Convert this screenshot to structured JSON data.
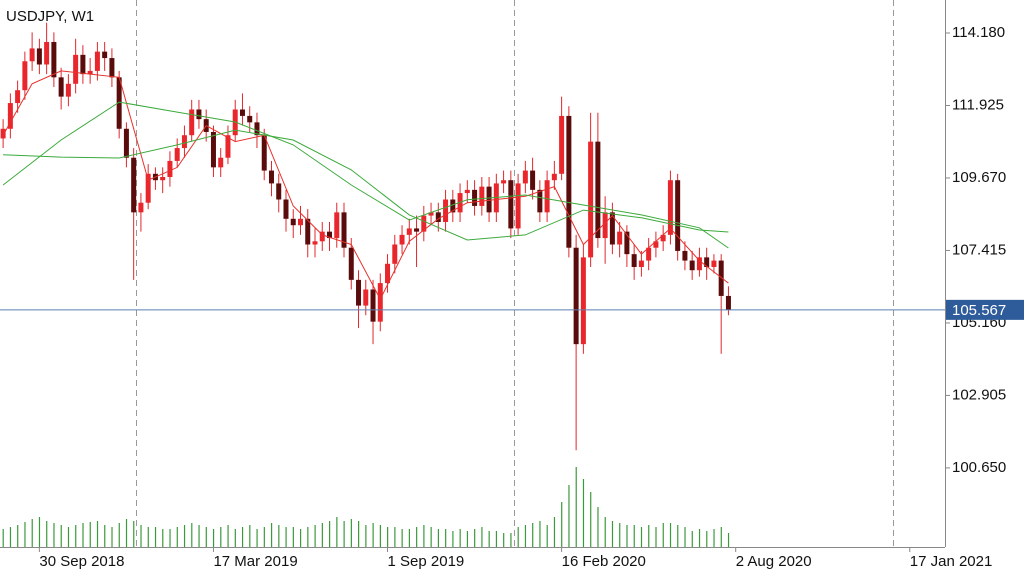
{
  "chart_data": {
    "type": "candlestick",
    "title": "USDJPY, W1",
    "x": [
      "2018-08-26",
      "2018-09-02",
      "2018-09-09",
      "2018-09-16",
      "2018-09-23",
      "2018-09-30",
      "2018-10-07",
      "2018-10-14",
      "2018-10-21",
      "2018-10-28",
      "2018-11-04",
      "2018-11-11",
      "2018-11-18",
      "2018-11-25",
      "2018-12-02",
      "2018-12-09",
      "2018-12-16",
      "2018-12-23",
      "2018-12-30",
      "2019-01-06",
      "2019-01-13",
      "2019-01-20",
      "2019-01-27",
      "2019-02-03",
      "2019-02-10",
      "2019-02-17",
      "2019-02-24",
      "2019-03-03",
      "2019-03-10",
      "2019-03-17",
      "2019-03-24",
      "2019-03-31",
      "2019-04-07",
      "2019-04-14",
      "2019-04-21",
      "2019-04-28",
      "2019-05-05",
      "2019-05-12",
      "2019-05-19",
      "2019-05-26",
      "2019-06-02",
      "2019-06-09",
      "2019-06-16",
      "2019-06-23",
      "2019-06-30",
      "2019-07-07",
      "2019-07-14",
      "2019-07-21",
      "2019-07-28",
      "2019-08-04",
      "2019-08-11",
      "2019-08-18",
      "2019-08-25",
      "2019-09-01",
      "2019-09-08",
      "2019-09-15",
      "2019-09-22",
      "2019-09-29",
      "2019-10-06",
      "2019-10-13",
      "2019-10-20",
      "2019-10-27",
      "2019-11-03",
      "2019-11-10",
      "2019-11-17",
      "2019-11-24",
      "2019-12-01",
      "2019-12-08",
      "2019-12-15",
      "2019-12-22",
      "2019-12-29",
      "2020-01-05",
      "2020-01-12",
      "2020-01-19",
      "2020-01-26",
      "2020-02-02",
      "2020-02-09",
      "2020-02-16",
      "2020-02-23",
      "2020-03-01",
      "2020-03-08",
      "2020-03-15",
      "2020-03-22",
      "2020-03-29",
      "2020-04-05",
      "2020-04-12",
      "2020-04-19",
      "2020-04-26",
      "2020-05-03",
      "2020-05-10",
      "2020-05-17",
      "2020-05-24",
      "2020-05-31",
      "2020-06-07",
      "2020-06-14",
      "2020-06-21",
      "2020-06-28",
      "2020-07-05",
      "2020-07-12",
      "2020-07-19",
      "2020-07-26"
    ],
    "open": [
      110.9,
      111.2,
      112.0,
      112.4,
      113.3,
      113.7,
      113.2,
      113.9,
      112.8,
      112.2,
      112.6,
      113.5,
      112.9,
      113.0,
      113.6,
      113.4,
      112.8,
      111.2,
      110.3,
      108.6,
      108.9,
      109.8,
      109.6,
      109.7,
      110.2,
      110.6,
      111.0,
      111.8,
      111.5,
      111.1,
      110.0,
      110.3,
      111.0,
      111.8,
      111.6,
      111.4,
      111.0,
      109.9,
      109.5,
      109.0,
      108.4,
      108.2,
      108.4,
      107.6,
      107.7,
      108.0,
      107.8,
      108.6,
      107.5,
      106.5,
      105.7,
      106.2,
      105.2,
      106.4,
      107.0,
      107.6,
      107.9,
      108.1,
      108.0,
      108.5,
      108.6,
      108.3,
      109.0,
      108.6,
      109.2,
      109.3,
      108.8,
      109.4,
      108.6,
      109.5,
      109.6,
      108.1,
      109.5,
      109.9,
      109.3,
      108.6,
      109.6,
      109.8,
      111.6,
      107.5,
      104.5,
      107.2,
      110.8,
      107.8,
      108.6,
      107.6,
      108.0,
      107.3,
      106.9,
      107.1,
      107.5,
      107.7,
      107.9,
      109.6,
      107.4,
      107.1,
      106.8,
      107.2,
      106.9,
      107.1,
      106.0
    ],
    "high": [
      111.5,
      112.3,
      112.7,
      113.6,
      114.2,
      114.0,
      114.5,
      114.2,
      113.1,
      112.9,
      114.0,
      113.8,
      113.4,
      113.9,
      113.9,
      113.7,
      113.0,
      111.4,
      110.6,
      109.2,
      110.1,
      110.0,
      110.0,
      110.5,
      110.9,
      111.3,
      112.1,
      112.1,
      111.8,
      111.3,
      110.6,
      111.3,
      112.1,
      112.3,
      111.9,
      111.7,
      111.2,
      110.2,
      109.8,
      109.3,
      108.7,
      108.8,
      108.7,
      108.1,
      108.3,
      108.3,
      108.9,
      108.9,
      107.8,
      106.8,
      106.5,
      106.5,
      106.7,
      107.3,
      107.9,
      108.2,
      108.4,
      108.5,
      108.8,
      108.9,
      108.9,
      109.3,
      109.3,
      109.5,
      109.6,
      109.6,
      109.7,
      109.7,
      109.8,
      109.9,
      109.9,
      109.8,
      110.2,
      110.3,
      109.6,
      109.9,
      110.2,
      112.2,
      111.9,
      107.9,
      107.6,
      111.7,
      111.7,
      109.1,
      108.9,
      108.3,
      108.2,
      107.6,
      107.4,
      107.8,
      108.0,
      108.2,
      109.9,
      109.8,
      107.7,
      107.4,
      107.5,
      107.5,
      107.3,
      107.3,
      106.3
    ],
    "low": [
      110.6,
      110.9,
      111.7,
      112.1,
      113.0,
      112.9,
      112.9,
      112.5,
      111.8,
      111.9,
      112.3,
      112.6,
      112.6,
      112.7,
      113.0,
      112.5,
      110.9,
      110.0,
      106.5,
      108.0,
      108.7,
      109.3,
      109.2,
      109.4,
      110.0,
      110.3,
      110.8,
      111.2,
      110.8,
      109.7,
      109.7,
      110.1,
      110.8,
      111.3,
      111.1,
      110.6,
      109.6,
      109.1,
      108.6,
      108.0,
      107.8,
      107.9,
      107.2,
      107.2,
      107.4,
      107.4,
      107.5,
      107.2,
      106.2,
      105.0,
      105.4,
      104.5,
      104.9,
      106.1,
      106.7,
      107.3,
      107.6,
      106.9,
      107.7,
      108.2,
      108.0,
      108.0,
      108.3,
      108.3,
      108.9,
      108.5,
      108.5,
      108.3,
      108.3,
      109.2,
      107.8,
      107.9,
      109.2,
      109.0,
      108.3,
      108.3,
      109.3,
      109.6,
      107.2,
      101.2,
      104.2,
      106.9,
      107.5,
      107.0,
      107.3,
      107.2,
      106.9,
      106.5,
      106.6,
      106.8,
      107.2,
      107.4,
      107.6,
      107.1,
      106.8,
      106.5,
      106.6,
      106.5,
      106.7,
      104.2,
      105.4
    ],
    "close": [
      111.2,
      112.0,
      112.4,
      113.3,
      113.7,
      113.2,
      113.9,
      112.8,
      112.2,
      112.6,
      113.5,
      112.9,
      113.0,
      113.6,
      113.4,
      112.8,
      111.2,
      110.3,
      108.6,
      108.9,
      109.8,
      109.6,
      109.7,
      110.2,
      110.6,
      111.0,
      111.8,
      111.5,
      111.1,
      110.0,
      110.3,
      111.0,
      111.8,
      111.6,
      111.4,
      111.0,
      109.9,
      109.5,
      109.0,
      108.4,
      108.2,
      108.4,
      107.6,
      107.7,
      108.0,
      107.8,
      108.6,
      107.5,
      106.5,
      105.7,
      106.2,
      105.2,
      106.4,
      107.0,
      107.6,
      107.9,
      108.1,
      108.0,
      108.5,
      108.6,
      108.3,
      109.0,
      108.6,
      109.2,
      109.3,
      108.8,
      109.4,
      108.6,
      109.5,
      109.6,
      108.1,
      109.5,
      109.9,
      109.3,
      108.6,
      109.6,
      109.8,
      111.6,
      107.5,
      104.5,
      107.2,
      110.8,
      107.8,
      108.6,
      107.6,
      108.0,
      107.3,
      106.9,
      107.1,
      107.5,
      107.7,
      107.9,
      109.6,
      107.4,
      107.1,
      106.8,
      107.2,
      106.9,
      107.1,
      106.0,
      105.567
    ],
    "volume": [
      18,
      20,
      22,
      25,
      28,
      30,
      26,
      24,
      22,
      20,
      22,
      24,
      25,
      26,
      22,
      20,
      24,
      28,
      26,
      22,
      20,
      20,
      18,
      18,
      20,
      22,
      24,
      22,
      20,
      18,
      20,
      22,
      18,
      20,
      22,
      18,
      20,
      24,
      22,
      20,
      20,
      18,
      20,
      22,
      24,
      26,
      30,
      26,
      28,
      26,
      22,
      24,
      22,
      20,
      20,
      18,
      18,
      20,
      22,
      20,
      18,
      18,
      16,
      18,
      16,
      18,
      20,
      16,
      16,
      14,
      14,
      20,
      22,
      24,
      26,
      22,
      30,
      45,
      62,
      80,
      68,
      55,
      40,
      30,
      26,
      24,
      22,
      22,
      20,
      22,
      20,
      24,
      24,
      22,
      20,
      16,
      18,
      16,
      18,
      20,
      14
    ],
    "moving_averages": [
      {
        "color": "#e8302c",
        "x": [
          "2018-08-26",
          "2018-09-23",
          "2018-10-21",
          "2018-11-18",
          "2018-12-16",
          "2019-01-13",
          "2019-02-10",
          "2019-03-10",
          "2019-04-07",
          "2019-05-05",
          "2019-06-02",
          "2019-06-30",
          "2019-07-28",
          "2019-08-25",
          "2019-09-22",
          "2019-10-20",
          "2019-11-17",
          "2019-12-15",
          "2020-01-12",
          "2020-02-09",
          "2020-03-08",
          "2020-04-05",
          "2020-05-03",
          "2020-05-31",
          "2020-06-28",
          "2020-07-26"
        ],
        "values": [
          111.0,
          112.6,
          113.0,
          112.9,
          112.8,
          109.6,
          110.0,
          111.3,
          110.8,
          111.0,
          108.8,
          107.9,
          107.6,
          105.9,
          107.7,
          108.4,
          108.9,
          109.0,
          109.1,
          109.4,
          107.6,
          108.5,
          107.3,
          108.1,
          107.1,
          106.4
        ]
      },
      {
        "color": "#3caa3c",
        "x": [
          "2018-08-26",
          "2018-10-21",
          "2018-12-16",
          "2019-02-10",
          "2019-04-07",
          "2019-06-02",
          "2019-07-28",
          "2019-09-22",
          "2019-11-17",
          "2020-01-12",
          "2020-03-08",
          "2020-05-03",
          "2020-06-28",
          "2020-07-26"
        ],
        "values": [
          109.45,
          110.85,
          112.03,
          111.72,
          111.41,
          110.7,
          109.45,
          108.36,
          108.99,
          109.14,
          108.83,
          108.52,
          108.12,
          107.49
        ]
      },
      {
        "color": "#3caa3c",
        "x": [
          "2018-08-26",
          "2018-10-21",
          "2018-12-16",
          "2019-02-10",
          "2019-04-07",
          "2019-06-02",
          "2019-07-28",
          "2019-09-22",
          "2019-11-17",
          "2020-01-12",
          "2020-03-08",
          "2020-05-03",
          "2020-06-28",
          "2020-07-26"
        ],
        "values": [
          110.39,
          110.32,
          110.29,
          110.7,
          111.16,
          110.85,
          109.92,
          108.52,
          107.74,
          107.9,
          108.67,
          108.43,
          108.05,
          107.99
        ]
      }
    ],
    "up_color": "#e8262c",
    "down_color": "#5a0c0c",
    "wick_color": "#e0282c",
    "volume_color": "#3c9a3c",
    "ylim": [
      98.19,
      115.206
    ],
    "yticks": [
      {
        "value": 114.18,
        "label": "114.180"
      },
      111.925,
      {
        "value": 109.67,
        "label": "109.670"
      },
      107.415,
      {
        "value": 105.16,
        "label": "105.160"
      },
      102.905,
      {
        "value": 100.65,
        "label": "100.650"
      }
    ],
    "xlim": [
      "2018-08-23",
      "2021-02-20"
    ],
    "xticks": [
      {
        "value": "2018-09-30",
        "label": "30 Sep 2018"
      },
      {
        "value": "2019-03-17",
        "label": "17 Mar 2019"
      },
      {
        "value": "2019-09-01",
        "label": "1 Sep 2019"
      },
      {
        "value": "2020-02-16",
        "label": "16 Feb 2020"
      },
      {
        "value": "2020-08-02",
        "label": "2 Aug 2020"
      },
      {
        "value": "2021-01-17",
        "label": "17 Jan 2021"
      }
    ],
    "separators": [
      "2019-01-01",
      "2020-01-01",
      "2021-01-01"
    ],
    "current_price": 105.567,
    "current_price_color": "#2e5c9a"
  }
}
